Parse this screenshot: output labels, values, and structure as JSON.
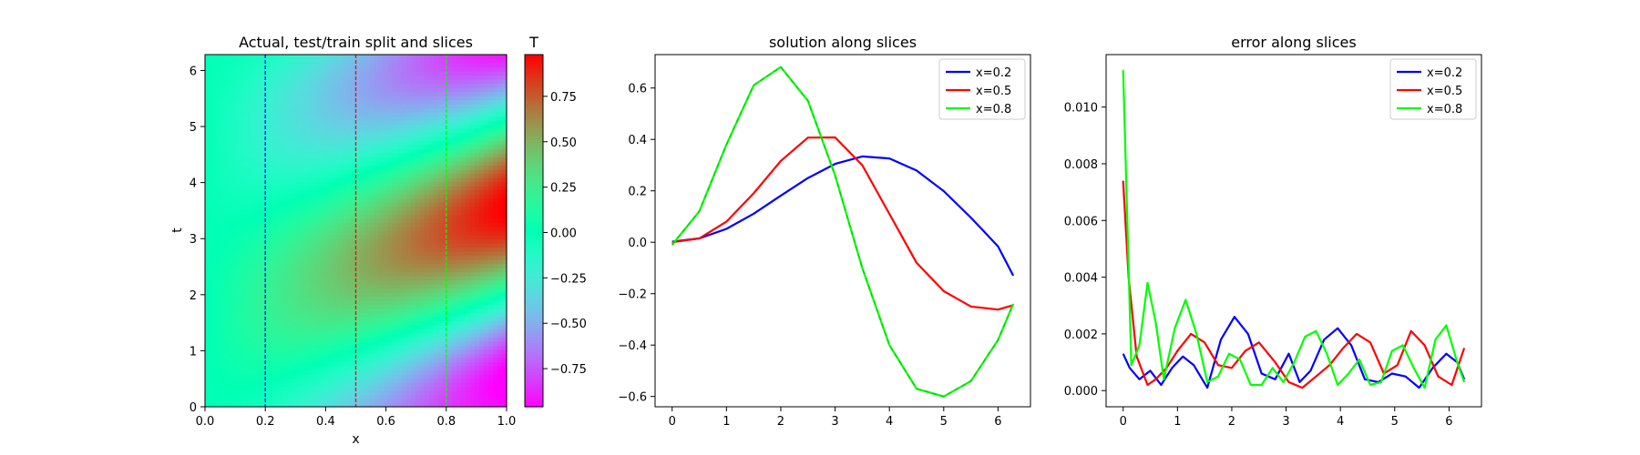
{
  "figure": {
    "colors": {
      "blue": "#0000ff",
      "red": "#ff0000",
      "green": "#00ff00"
    }
  },
  "chart_data": [
    {
      "type": "heatmap",
      "title": "Actual, test/train split and slices",
      "xlabel": "x",
      "ylabel": "t",
      "xlim": [
        0,
        1
      ],
      "ylim": [
        0,
        6.283
      ],
      "xticks": [
        0.0,
        0.2,
        0.4,
        0.6,
        0.8,
        1.0
      ],
      "xtick_labels": [
        "0.0",
        "0.2",
        "0.4",
        "0.6",
        "0.8",
        "1.0"
      ],
      "yticks": [
        0,
        1,
        2,
        3,
        4,
        5,
        6
      ],
      "ytick_labels": [
        "0",
        "1",
        "2",
        "3",
        "4",
        "5",
        "6"
      ],
      "field": "sin(t - 2x) * x",
      "colormap": "rainbow",
      "colorbar": {
        "label": "T",
        "range": [
          -0.96,
          0.98
        ],
        "ticks": [
          -0.75,
          -0.5,
          -0.25,
          0.0,
          0.25,
          0.5,
          0.75
        ],
        "tick_labels": [
          "−0.75",
          "−0.50",
          "−0.25",
          "0.00",
          "0.25",
          "0.50",
          "0.75"
        ]
      },
      "slices": [
        {
          "x": 0.2,
          "color": "#0000ff",
          "style": "dashed"
        },
        {
          "x": 0.5,
          "color": "#ff0000",
          "style": "dashed"
        },
        {
          "x": 0.8,
          "color": "#00ff00",
          "style": "dashed"
        }
      ]
    },
    {
      "type": "line",
      "title": "solution along slices",
      "xlabel": "",
      "ylabel": "",
      "xlim": [
        -0.314,
        6.597
      ],
      "ylim": [
        -0.64,
        0.73
      ],
      "xticks": [
        0,
        1,
        2,
        3,
        4,
        5,
        6
      ],
      "xtick_labels": [
        "0",
        "1",
        "2",
        "3",
        "4",
        "5",
        "6"
      ],
      "yticks": [
        -0.6,
        -0.4,
        -0.2,
        0.0,
        0.2,
        0.4,
        0.6
      ],
      "ytick_labels": [
        "−0.6",
        "−0.4",
        "−0.2",
        "0.0",
        "0.2",
        "0.4",
        "0.6"
      ],
      "legend_position": "top-right",
      "series": [
        {
          "name": "x=0.2",
          "color": "#0000ff",
          "x": [
            0.0,
            0.5,
            1.0,
            1.5,
            2.0,
            2.5,
            3.0,
            3.5,
            4.0,
            4.5,
            5.0,
            5.5,
            6.0,
            6.28
          ],
          "y": [
            0.002,
            0.015,
            0.052,
            0.111,
            0.181,
            0.25,
            0.305,
            0.334,
            0.326,
            0.279,
            0.199,
            0.096,
            -0.016,
            -0.13
          ]
        },
        {
          "name": "x=0.5",
          "color": "#ff0000",
          "x": [
            0.0,
            0.5,
            1.0,
            1.5,
            2.0,
            2.5,
            3.0,
            3.5,
            4.0,
            4.5,
            5.0,
            5.5,
            6.0,
            6.28
          ],
          "y": [
            0.0,
            0.015,
            0.08,
            0.19,
            0.316,
            0.407,
            0.408,
            0.3,
            0.11,
            -0.08,
            -0.19,
            -0.25,
            -0.262,
            -0.245
          ]
        },
        {
          "name": "x=0.8",
          "color": "#00ff00",
          "x": [
            0.0,
            0.5,
            1.0,
            1.5,
            2.0,
            2.5,
            3.0,
            3.5,
            4.0,
            4.5,
            5.0,
            5.5,
            6.0,
            6.28
          ],
          "y": [
            -0.01,
            0.12,
            0.38,
            0.61,
            0.682,
            0.55,
            0.26,
            -0.1,
            -0.4,
            -0.57,
            -0.6,
            -0.54,
            -0.38,
            -0.24
          ]
        }
      ]
    },
    {
      "type": "line",
      "title": "error along slices",
      "xlabel": "",
      "ylabel": "",
      "xlim": [
        -0.314,
        6.597
      ],
      "ylim": [
        -0.00057,
        0.01185
      ],
      "xticks": [
        0,
        1,
        2,
        3,
        4,
        5,
        6
      ],
      "xtick_labels": [
        "0",
        "1",
        "2",
        "3",
        "4",
        "5",
        "6"
      ],
      "yticks": [
        0.0,
        0.002,
        0.004,
        0.006,
        0.008,
        0.01
      ],
      "ytick_labels": [
        "0.000",
        "0.002",
        "0.004",
        "0.006",
        "0.008",
        "0.010"
      ],
      "legend_position": "top-right",
      "series": [
        {
          "name": "x=0.2",
          "color": "#0000ff",
          "x": [
            0.0,
            0.12,
            0.3,
            0.5,
            0.7,
            0.9,
            1.1,
            1.3,
            1.55,
            1.8,
            2.05,
            2.3,
            2.55,
            2.8,
            3.05,
            3.25,
            3.45,
            3.7,
            3.95,
            4.2,
            4.45,
            4.7,
            4.95,
            5.2,
            5.45,
            5.7,
            5.95,
            6.15,
            6.28
          ],
          "y": [
            0.0013,
            0.0008,
            0.0004,
            0.0007,
            0.0002,
            0.0008,
            0.0012,
            0.0009,
            0.0001,
            0.0018,
            0.0026,
            0.002,
            0.0006,
            0.0004,
            0.0013,
            0.0003,
            0.0007,
            0.0018,
            0.0022,
            0.0016,
            0.0004,
            0.0003,
            0.0006,
            0.0005,
            0.0001,
            0.0008,
            0.0013,
            0.001,
            0.0004
          ]
        },
        {
          "name": "x=0.5",
          "color": "#ff0000",
          "x": [
            0.0,
            0.1,
            0.25,
            0.45,
            0.6,
            0.8,
            1.0,
            1.25,
            1.5,
            1.75,
            2.0,
            2.25,
            2.5,
            2.8,
            3.05,
            3.3,
            3.55,
            3.8,
            4.05,
            4.3,
            4.55,
            4.8,
            5.05,
            5.3,
            5.55,
            5.8,
            6.05,
            6.28
          ],
          "y": [
            0.0074,
            0.004,
            0.0012,
            0.0002,
            0.0004,
            0.0008,
            0.0014,
            0.002,
            0.0017,
            0.0009,
            0.0008,
            0.0014,
            0.0017,
            0.001,
            0.0003,
            0.0001,
            0.0005,
            0.0009,
            0.0015,
            0.002,
            0.0017,
            0.0006,
            0.0009,
            0.0021,
            0.0016,
            0.0005,
            0.0002,
            0.0015
          ]
        },
        {
          "name": "x=0.8",
          "color": "#00ff00",
          "x": [
            0.0,
            0.15,
            0.3,
            0.45,
            0.6,
            0.75,
            0.95,
            1.15,
            1.35,
            1.55,
            1.75,
            1.95,
            2.15,
            2.35,
            2.55,
            2.75,
            2.95,
            3.15,
            3.35,
            3.55,
            3.75,
            3.95,
            4.15,
            4.35,
            4.55,
            4.75,
            4.95,
            5.15,
            5.35,
            5.55,
            5.75,
            5.95,
            6.15,
            6.28
          ],
          "y": [
            0.0113,
            0.0009,
            0.0016,
            0.0038,
            0.0024,
            0.0004,
            0.0022,
            0.0032,
            0.002,
            0.0003,
            0.0005,
            0.0013,
            0.0011,
            0.0002,
            0.0002,
            0.0008,
            0.0003,
            0.001,
            0.0019,
            0.0021,
            0.0013,
            0.0002,
            0.0006,
            0.0011,
            0.0002,
            0.0003,
            0.0014,
            0.0016,
            0.0008,
            0.0001,
            0.0018,
            0.0023,
            0.001,
            0.0003
          ]
        }
      ]
    }
  ]
}
